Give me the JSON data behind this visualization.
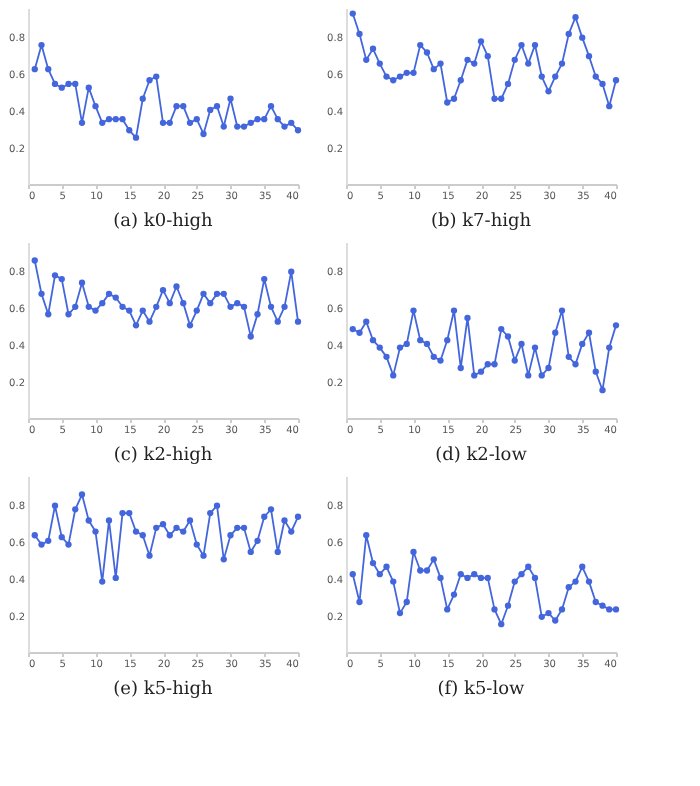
{
  "chart_data": [
    {
      "type": "line",
      "title": "(a) k0-high",
      "color": "#4466dd",
      "marker": "circle",
      "grid": false,
      "xlim": [
        0,
        40
      ],
      "xticks": [
        0,
        5,
        10,
        15,
        20,
        25,
        30,
        35,
        40
      ],
      "ylim": [
        0,
        0.95
      ],
      "yticks": [
        0.2,
        0.4,
        0.6,
        0.8
      ],
      "x": [
        1,
        2,
        3,
        4,
        5,
        6,
        7,
        8,
        9,
        10,
        11,
        12,
        13,
        14,
        15,
        16,
        17,
        18,
        19,
        20,
        21,
        22,
        23,
        24,
        25,
        26,
        27,
        28,
        29,
        30,
        31,
        32,
        33,
        34,
        35,
        36,
        37,
        38,
        39,
        40
      ],
      "values": [
        0.62,
        0.75,
        0.62,
        0.54,
        0.52,
        0.54,
        0.54,
        0.33,
        0.52,
        0.42,
        0.33,
        0.35,
        0.35,
        0.35,
        0.29,
        0.25,
        0.46,
        0.56,
        0.58,
        0.33,
        0.33,
        0.42,
        0.42,
        0.33,
        0.35,
        0.27,
        0.4,
        0.42,
        0.31,
        0.46,
        0.31,
        0.31,
        0.33,
        0.35,
        0.35,
        0.42,
        0.35,
        0.31,
        0.33,
        0.29
      ]
    },
    {
      "type": "line",
      "title": "(b) k7-high",
      "color": "#4466dd",
      "marker": "circle",
      "grid": false,
      "xlim": [
        0,
        40
      ],
      "xticks": [
        0,
        5,
        10,
        15,
        20,
        25,
        30,
        35,
        40
      ],
      "ylim": [
        0,
        0.95
      ],
      "yticks": [
        0.2,
        0.4,
        0.6,
        0.8
      ],
      "x": [
        1,
        2,
        3,
        4,
        5,
        6,
        7,
        8,
        9,
        10,
        11,
        12,
        13,
        14,
        15,
        16,
        17,
        18,
        19,
        20,
        21,
        22,
        23,
        24,
        25,
        26,
        27,
        28,
        29,
        30,
        31,
        32,
        33,
        34,
        35,
        36,
        37,
        38,
        39,
        40
      ],
      "values": [
        0.92,
        0.81,
        0.67,
        0.73,
        0.65,
        0.58,
        0.56,
        0.58,
        0.6,
        0.6,
        0.75,
        0.71,
        0.62,
        0.65,
        0.44,
        0.46,
        0.56,
        0.67,
        0.65,
        0.77,
        0.69,
        0.46,
        0.46,
        0.54,
        0.67,
        0.75,
        0.65,
        0.75,
        0.58,
        0.5,
        0.58,
        0.65,
        0.81,
        0.9,
        0.79,
        0.69,
        0.58,
        0.54,
        0.42,
        0.56
      ]
    },
    {
      "type": "line",
      "title": "(c) k2-high",
      "color": "#4466dd",
      "marker": "circle",
      "grid": false,
      "xlim": [
        0,
        40
      ],
      "xticks": [
        0,
        5,
        10,
        15,
        20,
        25,
        30,
        35,
        40
      ],
      "ylim": [
        0,
        0.95
      ],
      "yticks": [
        0.2,
        0.4,
        0.6,
        0.8
      ],
      "x": [
        1,
        2,
        3,
        4,
        5,
        6,
        7,
        8,
        9,
        10,
        11,
        12,
        13,
        14,
        15,
        16,
        17,
        18,
        19,
        20,
        21,
        22,
        23,
        24,
        25,
        26,
        27,
        28,
        29,
        30,
        31,
        32,
        33,
        34,
        35,
        36,
        37,
        38,
        39,
        40
      ],
      "values": [
        0.85,
        0.67,
        0.56,
        0.77,
        0.75,
        0.56,
        0.6,
        0.73,
        0.6,
        0.58,
        0.62,
        0.67,
        0.65,
        0.6,
        0.58,
        0.5,
        0.58,
        0.52,
        0.6,
        0.69,
        0.62,
        0.71,
        0.62,
        0.5,
        0.58,
        0.67,
        0.62,
        0.67,
        0.67,
        0.6,
        0.62,
        0.6,
        0.44,
        0.56,
        0.75,
        0.6,
        0.52,
        0.6,
        0.79,
        0.52
      ]
    },
    {
      "type": "line",
      "title": "(d) k2-low",
      "color": "#4466dd",
      "marker": "circle",
      "grid": false,
      "xlim": [
        0,
        40
      ],
      "xticks": [
        0,
        5,
        10,
        15,
        20,
        25,
        30,
        35,
        40
      ],
      "ylim": [
        0,
        0.95
      ],
      "yticks": [
        0.2,
        0.4,
        0.6,
        0.8
      ],
      "x": [
        1,
        2,
        3,
        4,
        5,
        6,
        7,
        8,
        9,
        10,
        11,
        12,
        13,
        14,
        15,
        16,
        17,
        18,
        19,
        20,
        21,
        22,
        23,
        24,
        25,
        26,
        27,
        28,
        29,
        30,
        31,
        32,
        33,
        34,
        35,
        36,
        37,
        38,
        39,
        40
      ],
      "values": [
        0.48,
        0.46,
        0.52,
        0.42,
        0.38,
        0.33,
        0.23,
        0.38,
        0.4,
        0.58,
        0.42,
        0.4,
        0.33,
        0.31,
        0.42,
        0.58,
        0.27,
        0.54,
        0.23,
        0.25,
        0.29,
        0.29,
        0.48,
        0.44,
        0.31,
        0.4,
        0.23,
        0.38,
        0.23,
        0.27,
        0.46,
        0.58,
        0.33,
        0.29,
        0.4,
        0.46,
        0.25,
        0.15,
        0.38,
        0.5
      ]
    },
    {
      "type": "line",
      "title": "(e) k5-high",
      "color": "#4466dd",
      "marker": "circle",
      "grid": false,
      "xlim": [
        0,
        40
      ],
      "xticks": [
        0,
        5,
        10,
        15,
        20,
        25,
        30,
        35,
        40
      ],
      "ylim": [
        0,
        0.95
      ],
      "yticks": [
        0.2,
        0.4,
        0.6,
        0.8
      ],
      "x": [
        1,
        2,
        3,
        4,
        5,
        6,
        7,
        8,
        9,
        10,
        11,
        12,
        13,
        14,
        15,
        16,
        17,
        18,
        19,
        20,
        21,
        22,
        23,
        24,
        25,
        26,
        27,
        28,
        29,
        30,
        31,
        32,
        33,
        34,
        35,
        36,
        37,
        38,
        39,
        40
      ],
      "values": [
        0.63,
        0.58,
        0.6,
        0.79,
        0.62,
        0.58,
        0.77,
        0.85,
        0.71,
        0.65,
        0.38,
        0.71,
        0.4,
        0.75,
        0.75,
        0.65,
        0.63,
        0.52,
        0.67,
        0.69,
        0.63,
        0.67,
        0.65,
        0.71,
        0.58,
        0.52,
        0.75,
        0.79,
        0.5,
        0.63,
        0.67,
        0.67,
        0.54,
        0.6,
        0.73,
        0.77,
        0.54,
        0.71,
        0.65,
        0.73
      ]
    },
    {
      "type": "line",
      "title": "(f) k5-low",
      "color": "#4466dd",
      "marker": "circle",
      "grid": false,
      "xlim": [
        0,
        40
      ],
      "xticks": [
        0,
        5,
        10,
        15,
        20,
        25,
        30,
        35,
        40
      ],
      "ylim": [
        0,
        0.95
      ],
      "yticks": [
        0.2,
        0.4,
        0.6,
        0.8
      ],
      "x": [
        1,
        2,
        3,
        4,
        5,
        6,
        7,
        8,
        9,
        10,
        11,
        12,
        13,
        14,
        15,
        16,
        17,
        18,
        19,
        20,
        21,
        22,
        23,
        24,
        25,
        26,
        27,
        28,
        29,
        30,
        31,
        32,
        33,
        34,
        35,
        36,
        37,
        38,
        39,
        40
      ],
      "values": [
        0.42,
        0.27,
        0.63,
        0.48,
        0.42,
        0.46,
        0.38,
        0.21,
        0.27,
        0.54,
        0.44,
        0.44,
        0.5,
        0.4,
        0.23,
        0.31,
        0.42,
        0.4,
        0.42,
        0.4,
        0.4,
        0.23,
        0.15,
        0.25,
        0.38,
        0.42,
        0.46,
        0.4,
        0.19,
        0.21,
        0.17,
        0.23,
        0.35,
        0.38,
        0.46,
        0.38,
        0.27,
        0.25,
        0.23,
        0.23
      ]
    }
  ]
}
